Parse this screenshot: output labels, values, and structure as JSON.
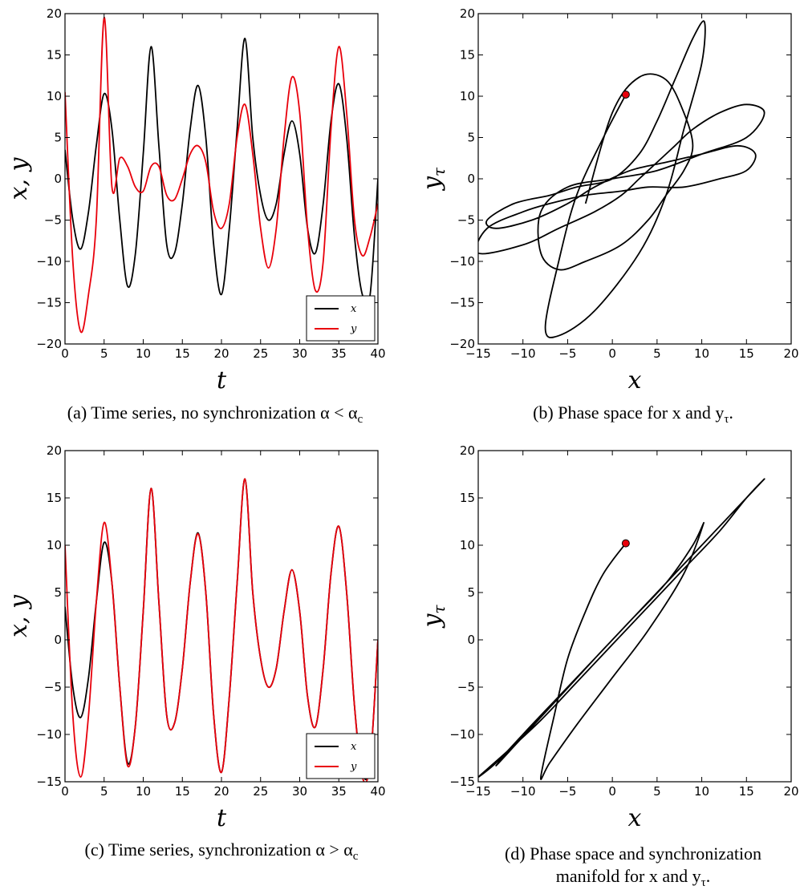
{
  "chart_data": [
    {
      "type": "line",
      "caption": "(a) Time series, no synchronization α < α",
      "caption_sub": "c",
      "xlabel": "t",
      "ylabel": "x, y",
      "xlim": [
        0,
        40
      ],
      "ylim": [
        -20,
        20
      ],
      "xticks": [
        0,
        5,
        10,
        15,
        20,
        25,
        30,
        35,
        40
      ],
      "yticks": [
        -20,
        -15,
        -10,
        -5,
        0,
        5,
        10,
        15,
        20
      ],
      "legend": {
        "position": "lower-right",
        "entries": [
          {
            "label": "x",
            "color": "#000000"
          },
          {
            "label": "y",
            "color": "#e8000b"
          }
        ]
      },
      "series": [
        {
          "name": "x",
          "color": "#000000",
          "x": [
            0,
            1,
            2,
            3,
            4,
            5,
            6,
            7,
            8,
            9,
            10,
            11,
            12,
            13,
            14,
            15,
            16,
            17,
            18,
            19,
            20,
            21,
            22,
            23,
            24,
            25,
            26,
            27,
            28,
            29,
            30,
            31,
            32,
            33,
            34,
            35,
            36,
            37,
            38,
            39,
            40
          ],
          "y": [
            3.5,
            -5,
            -8.5,
            -4,
            4,
            10.3,
            6,
            -5,
            -13,
            -9,
            3,
            16,
            4,
            -8,
            -9,
            -3,
            6,
            11.3,
            5,
            -8,
            -14,
            -6,
            6,
            17,
            5,
            -2,
            -5,
            -3,
            3,
            7,
            3,
            -6,
            -9,
            -3,
            7,
            11.5,
            5,
            -7,
            -14,
            -14,
            0
          ]
        },
        {
          "name": "y",
          "color": "#e8000b",
          "x": [
            0,
            1,
            2,
            3,
            4,
            5,
            6,
            7,
            8,
            9,
            10,
            11,
            12,
            13,
            14,
            15,
            16,
            17,
            18,
            19,
            20,
            21,
            22,
            23,
            24,
            25,
            26,
            27,
            28,
            29,
            30,
            31,
            32,
            33,
            34,
            35,
            36,
            37,
            38,
            39,
            40
          ],
          "y": [
            10.5,
            -10,
            -18.5,
            -14,
            -5,
            19.5,
            -1,
            2.5,
            1.5,
            -1,
            -1.5,
            1.5,
            1.5,
            -2,
            -2.5,
            0,
            3,
            4,
            2,
            -4,
            -6,
            -3,
            5,
            9,
            3,
            -6,
            -10.8,
            -6,
            5,
            12.3,
            8,
            -6,
            -13.5,
            -10,
            6,
            16,
            8,
            -5,
            -9.3,
            -7,
            -3
          ]
        }
      ]
    },
    {
      "type": "line",
      "caption": "(b) Phase space for x and y",
      "caption_sub": "τ",
      "caption_end": ".",
      "xlabel": "x",
      "ylabel": "y",
      "ylabel_sub": "τ",
      "xlim": [
        -15,
        20
      ],
      "ylim": [
        -20,
        20
      ],
      "xticks": [
        -15,
        -10,
        -5,
        0,
        5,
        10,
        15,
        20
      ],
      "yticks": [
        -20,
        -15,
        -10,
        -5,
        0,
        5,
        10,
        15,
        20
      ],
      "start_point": {
        "x": 1.5,
        "y": 10.2,
        "color": "#e8000b"
      },
      "series": [
        {
          "name": "",
          "color": "#000000",
          "x": [
            1.5,
            -1,
            -4,
            -6,
            -7.5,
            -6,
            -2,
            3,
            6,
            8,
            10,
            10.3,
            9,
            7,
            5,
            3,
            0,
            -4,
            -7,
            -11,
            -14,
            -13,
            -9,
            -5,
            -2,
            2,
            6,
            10,
            14,
            16,
            15,
            12,
            8,
            4,
            1,
            -3,
            -7,
            -10,
            -14,
            -15,
            -10,
            -6,
            -2,
            1,
            3,
            5,
            7,
            9,
            12,
            15,
            17,
            15,
            10,
            5,
            0,
            -5,
            -8,
            -8,
            -6,
            -3,
            1,
            4,
            6,
            8,
            9,
            8,
            6,
            3,
            0,
            -3
          ],
          "y": [
            10.2,
            5,
            -2,
            -10,
            -18,
            -19,
            -16,
            -9,
            -2,
            6,
            14,
            19,
            17,
            12,
            7,
            3,
            0,
            -1,
            -2,
            -3,
            -5,
            -6,
            -5,
            -3,
            -1,
            1,
            2,
            3,
            4,
            3,
            1,
            0,
            -1,
            -1,
            -1.5,
            -2,
            -3,
            -4,
            -6,
            -9,
            -8,
            -6,
            -4,
            -2,
            0,
            2,
            4,
            6,
            8,
            9,
            8,
            5,
            3,
            1,
            0,
            -1,
            -4,
            -9,
            -11,
            -10,
            -8,
            -5,
            -2,
            1,
            4,
            8,
            12,
            12.3,
            8,
            -3
          ]
        }
      ]
    },
    {
      "type": "line",
      "caption": "(c) Time series, synchronization α > α",
      "caption_sub": "c",
      "xlabel": "t",
      "ylabel": "x, y",
      "xlim": [
        0,
        40
      ],
      "ylim": [
        -15,
        20
      ],
      "xticks": [
        0,
        5,
        10,
        15,
        20,
        25,
        30,
        35,
        40
      ],
      "yticks": [
        -15,
        -10,
        -5,
        0,
        5,
        10,
        15,
        20
      ],
      "legend": {
        "position": "lower-right",
        "entries": [
          {
            "label": "x",
            "color": "#000000"
          },
          {
            "label": "y",
            "color": "#e8000b"
          }
        ]
      },
      "series": [
        {
          "name": "x",
          "color": "#000000",
          "x": [
            0,
            1,
            2,
            3,
            4,
            5,
            6,
            7,
            8,
            9,
            10,
            11,
            12,
            13,
            14,
            15,
            16,
            17,
            18,
            19,
            20,
            21,
            22,
            23,
            24,
            25,
            26,
            27,
            28,
            29,
            30,
            31,
            32,
            33,
            34,
            35,
            36,
            37,
            38,
            39,
            40
          ],
          "y": [
            3.5,
            -5,
            -8.2,
            -4,
            4,
            10.3,
            6,
            -5,
            -13,
            -9,
            3,
            16,
            4,
            -8,
            -8.8,
            -3,
            6,
            11.3,
            5,
            -8,
            -14,
            -6,
            6,
            17,
            5,
            -2,
            -5,
            -3,
            3,
            7.4,
            3,
            -6,
            -9.2,
            -3,
            7,
            12,
            5,
            -7,
            -14,
            -13,
            0
          ]
        },
        {
          "name": "y",
          "color": "#e8000b",
          "x": [
            0,
            1,
            2,
            3,
            4,
            5,
            6,
            7,
            8,
            9,
            10,
            11,
            12,
            13,
            14,
            15,
            16,
            17,
            18,
            19,
            20,
            21,
            22,
            23,
            24,
            25,
            26,
            27,
            28,
            29,
            30,
            31,
            32,
            33,
            34,
            35,
            36,
            37,
            38,
            39,
            40
          ],
          "y": [
            10,
            -8,
            -14.5,
            -8,
            4,
            12.4,
            6,
            -5,
            -13.3,
            -9,
            3,
            16,
            4,
            -8,
            -8.8,
            -3,
            6,
            11.2,
            5,
            -8,
            -14,
            -6,
            6,
            17,
            5,
            -2,
            -5,
            -3,
            3,
            7.4,
            3,
            -6,
            -9.2,
            -3,
            7,
            12,
            5,
            -7,
            -14.5,
            -13,
            0
          ]
        }
      ]
    },
    {
      "type": "line",
      "caption": "(d) Phase space and synchronization",
      "caption2": "manifold for x and y",
      "caption_sub": "τ",
      "caption_end": ".",
      "xlabel": "x",
      "ylabel": "y",
      "ylabel_sub": "τ",
      "xlim": [
        -15,
        20
      ],
      "ylim": [
        -15,
        20
      ],
      "xticks": [
        -15,
        -10,
        -5,
        0,
        5,
        10,
        15,
        20
      ],
      "yticks": [
        -15,
        -10,
        -5,
        0,
        5,
        10,
        15,
        20
      ],
      "start_point": {
        "x": 1.5,
        "y": 10.2,
        "color": "#e8000b"
      },
      "series": [
        {
          "name": "",
          "color": "#000000",
          "x": [
            1.5,
            -1,
            -3,
            -5,
            -6.5,
            -8,
            -7,
            -4,
            0,
            4,
            8,
            10.2,
            9,
            6,
            2,
            -2,
            -6,
            -10,
            -13,
            -15,
            -12,
            -8,
            -4,
            0,
            4,
            8,
            12,
            15,
            17,
            14,
            10,
            6,
            2,
            -2,
            -6,
            -10,
            -13,
            -9,
            -5,
            -1,
            3,
            7,
            11,
            15,
            17
          ],
          "y": [
            10.2,
            7,
            3,
            -2,
            -8,
            -14.5,
            -13,
            -9,
            -4,
            1,
            7,
            12.3,
            10,
            6,
            2,
            -2,
            -6,
            -10,
            -13,
            -14.5,
            -12,
            -8.5,
            -4.5,
            -0.5,
            3.5,
            7.5,
            11.5,
            15,
            17,
            14,
            10,
            6,
            2,
            -2,
            -6,
            -10,
            -13.3,
            -9.2,
            -5.1,
            -1,
            3,
            7,
            11,
            15,
            17
          ]
        }
      ]
    }
  ]
}
